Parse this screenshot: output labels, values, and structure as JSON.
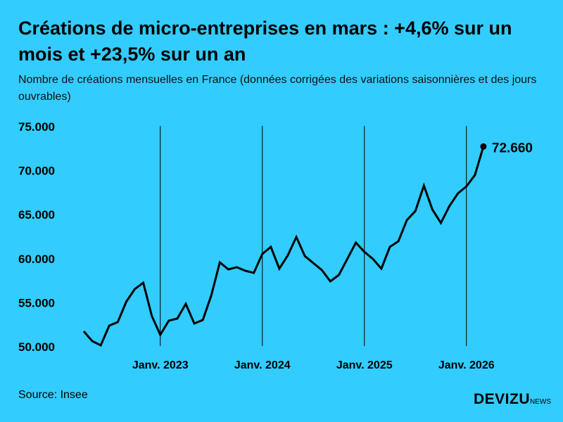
{
  "title": "Créations de micro-entreprises en mars : +4,6% sur un mois et +23,5% sur un an",
  "subtitle": "Nombre de créations mensuelles en France (données corrigées des variations saisonnières et des jours ouvrables)",
  "source": "Source: Insee",
  "logo": {
    "main": "DEVIZU",
    "suffix": "NEWS"
  },
  "colors": {
    "background": "#33CCFF",
    "line": "#000000"
  },
  "chart_data": {
    "type": "line",
    "title": "Créations de micro-entreprises en mars : +4,6% sur un mois et +23,5% sur un an",
    "xlabel": "",
    "ylabel": "",
    "ylim": [
      50000,
      75000
    ],
    "yticks": [
      50000,
      55000,
      60000,
      65000,
      70000,
      75000
    ],
    "ytick_labels": [
      "50.000",
      "55.000",
      "60.000",
      "65.000",
      "70.000",
      "75.000"
    ],
    "xticks": [
      {
        "date": "2023-01",
        "label": "Janv. 2023"
      },
      {
        "date": "2024-01",
        "label": "Janv. 2024"
      },
      {
        "date": "2025-01",
        "label": "Janv. 2025"
      },
      {
        "date": "2026-01",
        "label": "Janv. 2026"
      }
    ],
    "x_start": "2022-04",
    "x": [
      "2022-04",
      "2022-05",
      "2022-06",
      "2022-07",
      "2022-08",
      "2022-09",
      "2022-10",
      "2022-11",
      "2022-12",
      "2023-01",
      "2023-02",
      "2023-03",
      "2023-04",
      "2023-05",
      "2023-06",
      "2023-07",
      "2023-08",
      "2023-09",
      "2023-10",
      "2023-11",
      "2023-12",
      "2024-01",
      "2024-02",
      "2024-03",
      "2024-04",
      "2024-05",
      "2024-06",
      "2024-07",
      "2024-08",
      "2024-09",
      "2024-10",
      "2024-11",
      "2024-12",
      "2025-01",
      "2025-02",
      "2025-03",
      "2025-04",
      "2025-05",
      "2025-06",
      "2025-07",
      "2025-08",
      "2025-09",
      "2025-10",
      "2025-11",
      "2025-12",
      "2026-01",
      "2026-02",
      "2026-03"
    ],
    "values": [
      51680,
      50560,
      50080,
      52320,
      52720,
      55030,
      56470,
      57190,
      53430,
      51280,
      52880,
      53120,
      54790,
      52560,
      52960,
      55750,
      59500,
      58710,
      58950,
      58550,
      58310,
      60460,
      61260,
      58790,
      60300,
      62380,
      60220,
      59420,
      58630,
      57350,
      58070,
      59900,
      61740,
      60700,
      59900,
      58790,
      61260,
      61900,
      64300,
      65330,
      68210,
      65500,
      63980,
      65890,
      67330,
      68130,
      69410,
      72660
    ],
    "last_label": "72.660",
    "grid": "vertical lines at January",
    "legend": "none"
  }
}
